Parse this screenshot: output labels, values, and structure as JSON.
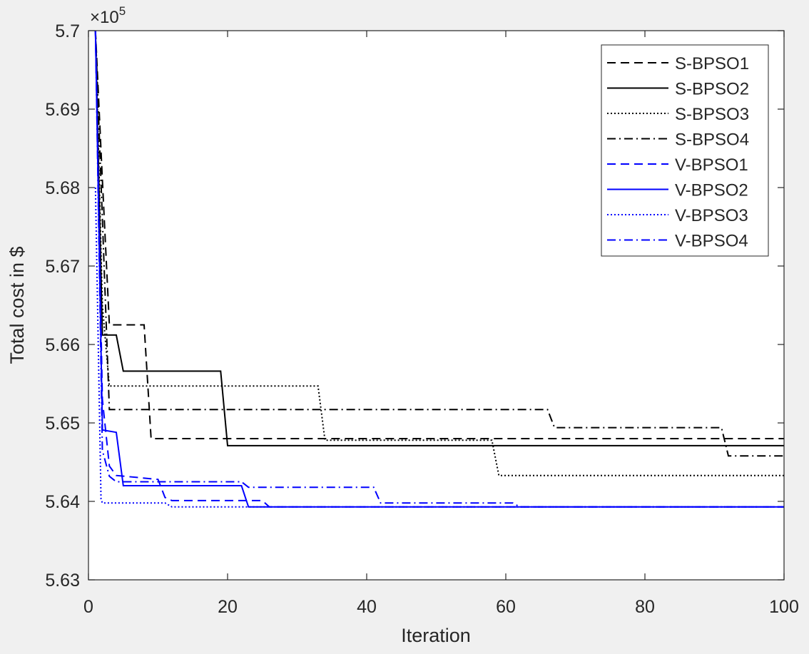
{
  "chart_data": {
    "type": "line",
    "title": "",
    "xlabel": "Iteration",
    "ylabel": "Total cost in $",
    "exponent_label": "×10",
    "exponent_power": "5",
    "xlim": [
      0,
      100
    ],
    "ylim": [
      5.63,
      5.7
    ],
    "xticks": [
      0,
      20,
      40,
      60,
      80,
      100
    ],
    "xtick_labels": [
      "0",
      "20",
      "40",
      "60",
      "80",
      "100"
    ],
    "yticks": [
      5.63,
      5.64,
      5.65,
      5.66,
      5.67,
      5.68,
      5.69,
      5.7
    ],
    "ytick_labels": [
      "5.63",
      "5.64",
      "5.65",
      "5.66",
      "5.67",
      "5.68",
      "5.69",
      "5.7"
    ],
    "grid": false,
    "legend_position": "top-right",
    "series": [
      {
        "name": "S-BPSO1",
        "color": "#000000",
        "dash": "dashed",
        "x": [
          1,
          2,
          3,
          3,
          8,
          9,
          9,
          100
        ],
        "y": [
          5.7,
          5.681,
          5.6625,
          5.6625,
          5.6625,
          5.648,
          5.648,
          5.648
        ]
      },
      {
        "name": "S-BPSO2",
        "color": "#000000",
        "dash": "solid",
        "x": [
          1,
          2,
          2,
          4,
          5,
          19,
          20,
          100
        ],
        "y": [
          5.7,
          5.6612,
          5.6612,
          5.6612,
          5.6566,
          5.6566,
          5.6471,
          5.6471
        ]
      },
      {
        "name": "S-BPSO3",
        "color": "#000000",
        "dash": "dotted",
        "x": [
          1,
          2,
          3,
          33,
          34,
          58,
          59,
          100
        ],
        "y": [
          5.7,
          5.665,
          5.6547,
          5.6547,
          5.6478,
          5.6478,
          5.6433,
          5.6433
        ]
      },
      {
        "name": "S-BPSO4",
        "color": "#000000",
        "dash": "dashdot",
        "x": [
          1,
          2,
          3,
          66,
          67,
          91,
          92,
          100
        ],
        "y": [
          5.7,
          5.676,
          5.6517,
          5.6517,
          5.6494,
          5.6494,
          5.6458,
          5.6458
        ]
      },
      {
        "name": "V-BPSO1",
        "color": "#0000ff",
        "dash": "dashed",
        "x": [
          1,
          2,
          3,
          4,
          10,
          11,
          12,
          25,
          26,
          100
        ],
        "y": [
          5.7,
          5.653,
          5.6445,
          5.6433,
          5.6428,
          5.6405,
          5.6401,
          5.6401,
          5.6393,
          5.6393
        ]
      },
      {
        "name": "V-BPSO2",
        "color": "#0000ff",
        "dash": "solid",
        "x": [
          1,
          2,
          2,
          4,
          5,
          22,
          23,
          100
        ],
        "y": [
          5.7,
          5.6496,
          5.6491,
          5.6488,
          5.642,
          5.642,
          5.6393,
          5.6393
        ]
      },
      {
        "name": "V-BPSO3",
        "color": "#0000ff",
        "dash": "dotted",
        "x": [
          1,
          1.8,
          2,
          11,
          12,
          100
        ],
        "y": [
          5.68,
          5.6403,
          5.6398,
          5.6398,
          5.6393,
          5.6393
        ]
      },
      {
        "name": "V-BPSO4",
        "color": "#0000ff",
        "dash": "dashdot",
        "x": [
          1,
          2,
          3,
          4,
          22,
          23,
          41,
          42,
          61,
          62,
          100
        ],
        "y": [
          5.7,
          5.6465,
          5.6432,
          5.6425,
          5.6425,
          5.6418,
          5.6418,
          5.6398,
          5.6398,
          5.6393,
          5.6393
        ]
      }
    ]
  }
}
